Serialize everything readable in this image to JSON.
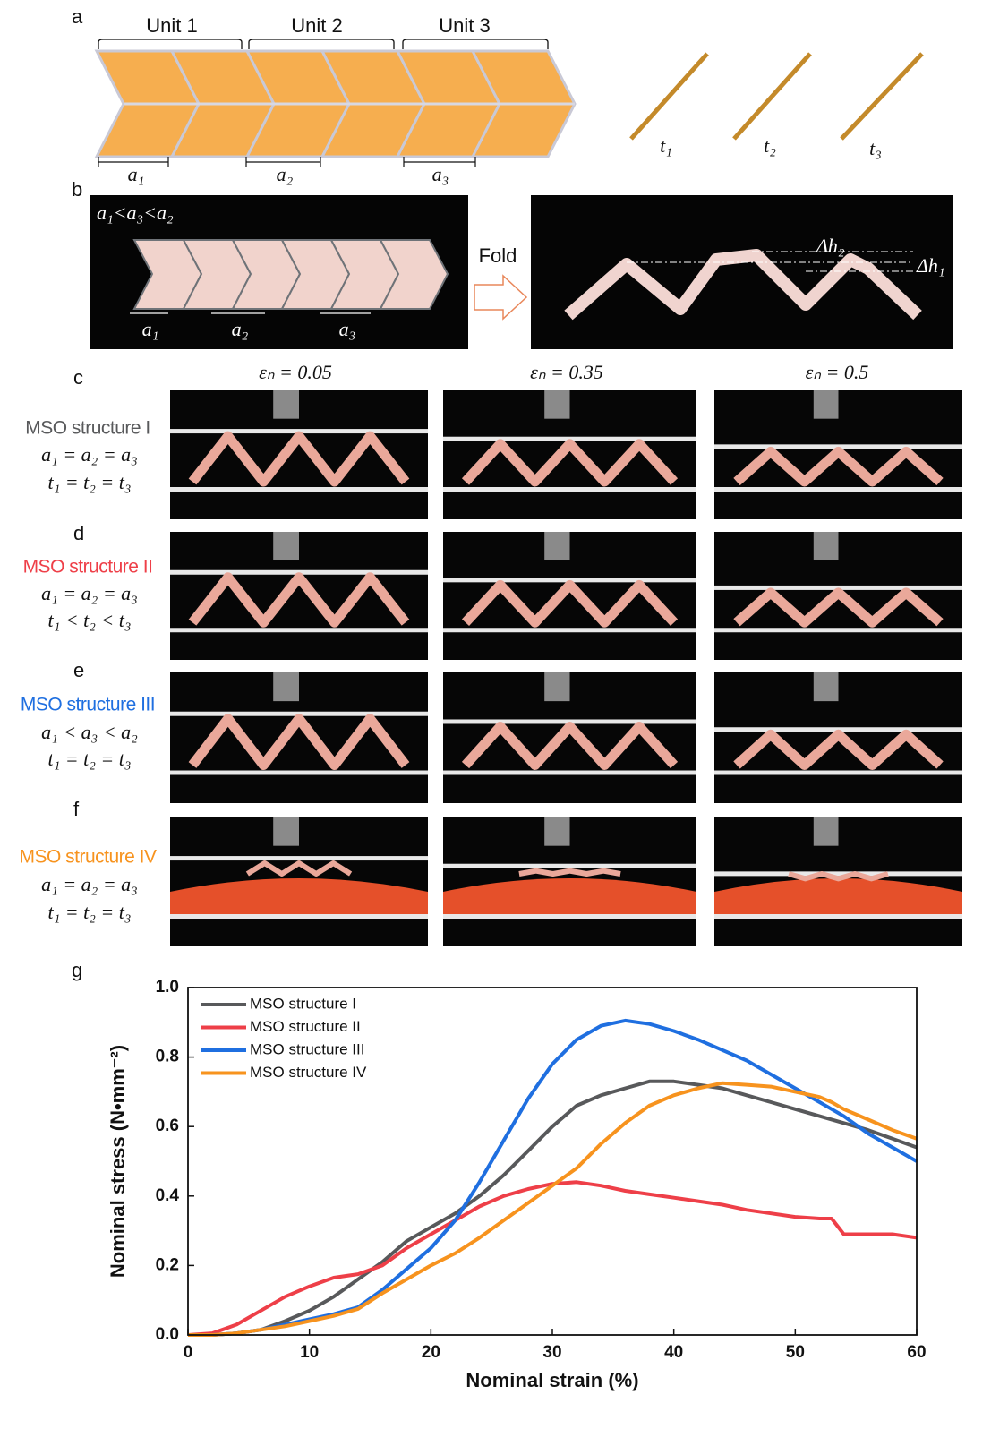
{
  "panels": {
    "a": {
      "letter": "a",
      "units": [
        "Unit 1",
        "Unit 2",
        "Unit 3"
      ],
      "lengths": [
        "a₁",
        "a₂",
        "a₃"
      ],
      "thicknesses": [
        "t₁",
        "t₂",
        "t₃"
      ]
    },
    "b": {
      "letter": "b",
      "condition": "a₁<a₃<a₂",
      "lengths": [
        "a₁",
        "a₂",
        "a₃"
      ],
      "action": "Fold",
      "heights": [
        "Δh₂",
        "Δh₁"
      ]
    },
    "strains": [
      "εₙ = 0.05",
      "εₙ = 0.35",
      "εₙ = 0.5"
    ],
    "rows": [
      {
        "letter": "c",
        "name": "MSO structure I",
        "color": "#58595b",
        "geometry": "a₁ = a₂ = a₃",
        "thickness": "t₁ = t₂ = t₃"
      },
      {
        "letter": "d",
        "name": "MSO structure II",
        "color": "#ee3f48",
        "geometry": "a₁ = a₂ = a₃",
        "thickness": "t₁ < t₂ < t₃"
      },
      {
        "letter": "e",
        "name": "MSO structure III",
        "color": "#1f6fe0",
        "geometry": "a₁ < a₃ < a₂",
        "thickness": "t₁ = t₂ = t₃"
      },
      {
        "letter": "f",
        "name": "MSO structure IV",
        "color": "#f7931e",
        "geometry": "a₁ = a₂ = a₃",
        "thickness": "t₁ = t₂ = t₃"
      }
    ]
  },
  "chart_data": {
    "type": "line",
    "panel_label": "g",
    "x_label": "Nominal strain (%)",
    "y_label": "Nominal stress (N•mm⁻²)",
    "xlim": [
      0,
      60
    ],
    "ylim": [
      0,
      1
    ],
    "xticks": [
      0,
      10,
      20,
      30,
      40,
      50,
      60
    ],
    "yticks": [
      {
        "value": 0,
        "label": "0.0"
      },
      0.2,
      0.4,
      0.6,
      0.8,
      {
        "value": 1,
        "label": "1.0"
      }
    ],
    "legend": "upper left",
    "x": [
      0,
      2,
      4,
      6,
      8,
      10,
      12,
      14,
      16,
      18,
      20,
      22,
      24,
      26,
      28,
      30,
      32,
      34,
      36,
      38,
      40,
      42,
      44,
      46,
      48,
      50,
      52,
      53,
      54,
      56,
      58,
      60
    ],
    "series": [
      {
        "name": "MSO structure I",
        "color": "#58595b",
        "values": [
          0,
          0,
          0.005,
          0.015,
          0.04,
          0.07,
          0.11,
          0.16,
          0.21,
          0.27,
          0.31,
          0.35,
          0.4,
          0.46,
          0.53,
          0.6,
          0.66,
          0.69,
          0.71,
          0.73,
          0.73,
          0.72,
          0.71,
          0.69,
          0.67,
          0.65,
          0.63,
          0.62,
          0.61,
          0.59,
          0.565,
          0.54
        ]
      },
      {
        "name": "MSO structure II",
        "color": "#ee3f48",
        "values": [
          0,
          0.005,
          0.03,
          0.07,
          0.11,
          0.14,
          0.165,
          0.175,
          0.2,
          0.25,
          0.29,
          0.33,
          0.37,
          0.4,
          0.42,
          0.435,
          0.44,
          0.43,
          0.415,
          0.405,
          0.395,
          0.385,
          0.375,
          0.36,
          0.35,
          0.34,
          0.335,
          0.335,
          0.29,
          0.29,
          0.29,
          0.28
        ]
      },
      {
        "name": "MSO structure III",
        "color": "#1f6fe0",
        "values": [
          0,
          0,
          0.005,
          0.015,
          0.03,
          0.045,
          0.06,
          0.08,
          0.13,
          0.19,
          0.25,
          0.33,
          0.44,
          0.56,
          0.68,
          0.78,
          0.85,
          0.89,
          0.905,
          0.895,
          0.875,
          0.85,
          0.82,
          0.79,
          0.75,
          0.71,
          0.67,
          0.65,
          0.63,
          0.58,
          0.54,
          0.5
        ]
      },
      {
        "name": "MSO structure IV",
        "color": "#f7931e",
        "values": [
          0,
          0,
          0.005,
          0.015,
          0.025,
          0.04,
          0.055,
          0.075,
          0.12,
          0.16,
          0.2,
          0.235,
          0.28,
          0.33,
          0.38,
          0.43,
          0.48,
          0.55,
          0.61,
          0.66,
          0.69,
          0.71,
          0.725,
          0.72,
          0.715,
          0.7,
          0.685,
          0.67,
          0.65,
          0.62,
          0.59,
          0.565
        ]
      }
    ]
  }
}
